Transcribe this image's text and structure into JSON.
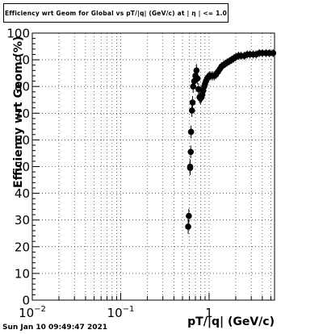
{
  "title": "Efficiency wrt Geom for Global vs pT/|q| (GeV/c) at | η | <= 1.0",
  "footer": "Sun Jan 10 09:49:47 2021",
  "chart_data": {
    "type": "scatter",
    "title": "Efficiency wrt Geom for Global vs pT/|q| (GeV/c) at | η | <= 1.0",
    "xlabel": "pT/|q| (GeV/c)",
    "ylabel": "Efficiency wrt Geom (%)",
    "x_scale": "log",
    "xlim": [
      0.01,
      5.5
    ],
    "ylim": [
      0,
      100
    ],
    "grid": true,
    "x_ticks": [
      {
        "value": 0.01,
        "base": "10",
        "exp": "−2"
      },
      {
        "value": 0.1,
        "base": "10",
        "exp": "−1"
      },
      {
        "value": 1,
        "base": "1",
        "exp": ""
      }
    ],
    "y_ticks": [
      0,
      10,
      20,
      30,
      40,
      50,
      60,
      70,
      80,
      90,
      100
    ],
    "series": [
      {
        "x": [
          0.58,
          0.59,
          0.61,
          0.61,
          0.62,
          0.625,
          0.64,
          0.65,
          0.66,
          0.68,
          0.7,
          0.72,
          0.74,
          0.76,
          0.78,
          0.8,
          0.82,
          0.84,
          0.86,
          0.88,
          0.9,
          0.92,
          0.95,
          0.98,
          1.01,
          1.05,
          1.1,
          1.15,
          1.2,
          1.26,
          1.32,
          1.38,
          1.45,
          1.52,
          1.6,
          1.7,
          1.8,
          1.9,
          2.0,
          2.15,
          2.3,
          2.5,
          2.7,
          2.9,
          3.15,
          3.4,
          3.7,
          4.0,
          4.4,
          4.8,
          5.3
        ],
        "y": [
          27.5,
          31.5,
          49.5,
          50.0,
          55.5,
          63.0,
          71.0,
          74.0,
          80.0,
          82.0,
          84.0,
          86.0,
          83.0,
          79.0,
          76.0,
          75.5,
          76.0,
          77.0,
          78.5,
          80.0,
          81.0,
          82.0,
          83.0,
          83.5,
          84.0,
          84.0,
          84.0,
          84.0,
          84.5,
          85.5,
          86.5,
          87.5,
          88.0,
          88.5,
          89.0,
          89.5,
          90.0,
          90.5,
          91.0,
          91.5,
          91.5,
          91.5,
          92.0,
          92.0,
          92.0,
          92.0,
          92.5,
          92.5,
          92.5,
          92.5,
          92.5
        ],
        "yerr": [
          1.5,
          1.5,
          1.5,
          1.5,
          1.2,
          1.2,
          1.2,
          1.2,
          1.2,
          1.2,
          1.2,
          1.2,
          1.0,
          1.0,
          1.0,
          1.0,
          0.8,
          0.8,
          0.8,
          0.8,
          0.6,
          0.6,
          0.6,
          0.6,
          0.5,
          0.5,
          0.5,
          0.5,
          0.4,
          0.4,
          0.4,
          0.4,
          0.3,
          0.3,
          0.3,
          0.3,
          0.3,
          0.3,
          0.3,
          0.3,
          0.3,
          0.3,
          0.3,
          0.3,
          0.3,
          0.3,
          0.3,
          0.3,
          0.3,
          0.3,
          0.3
        ]
      }
    ]
  }
}
